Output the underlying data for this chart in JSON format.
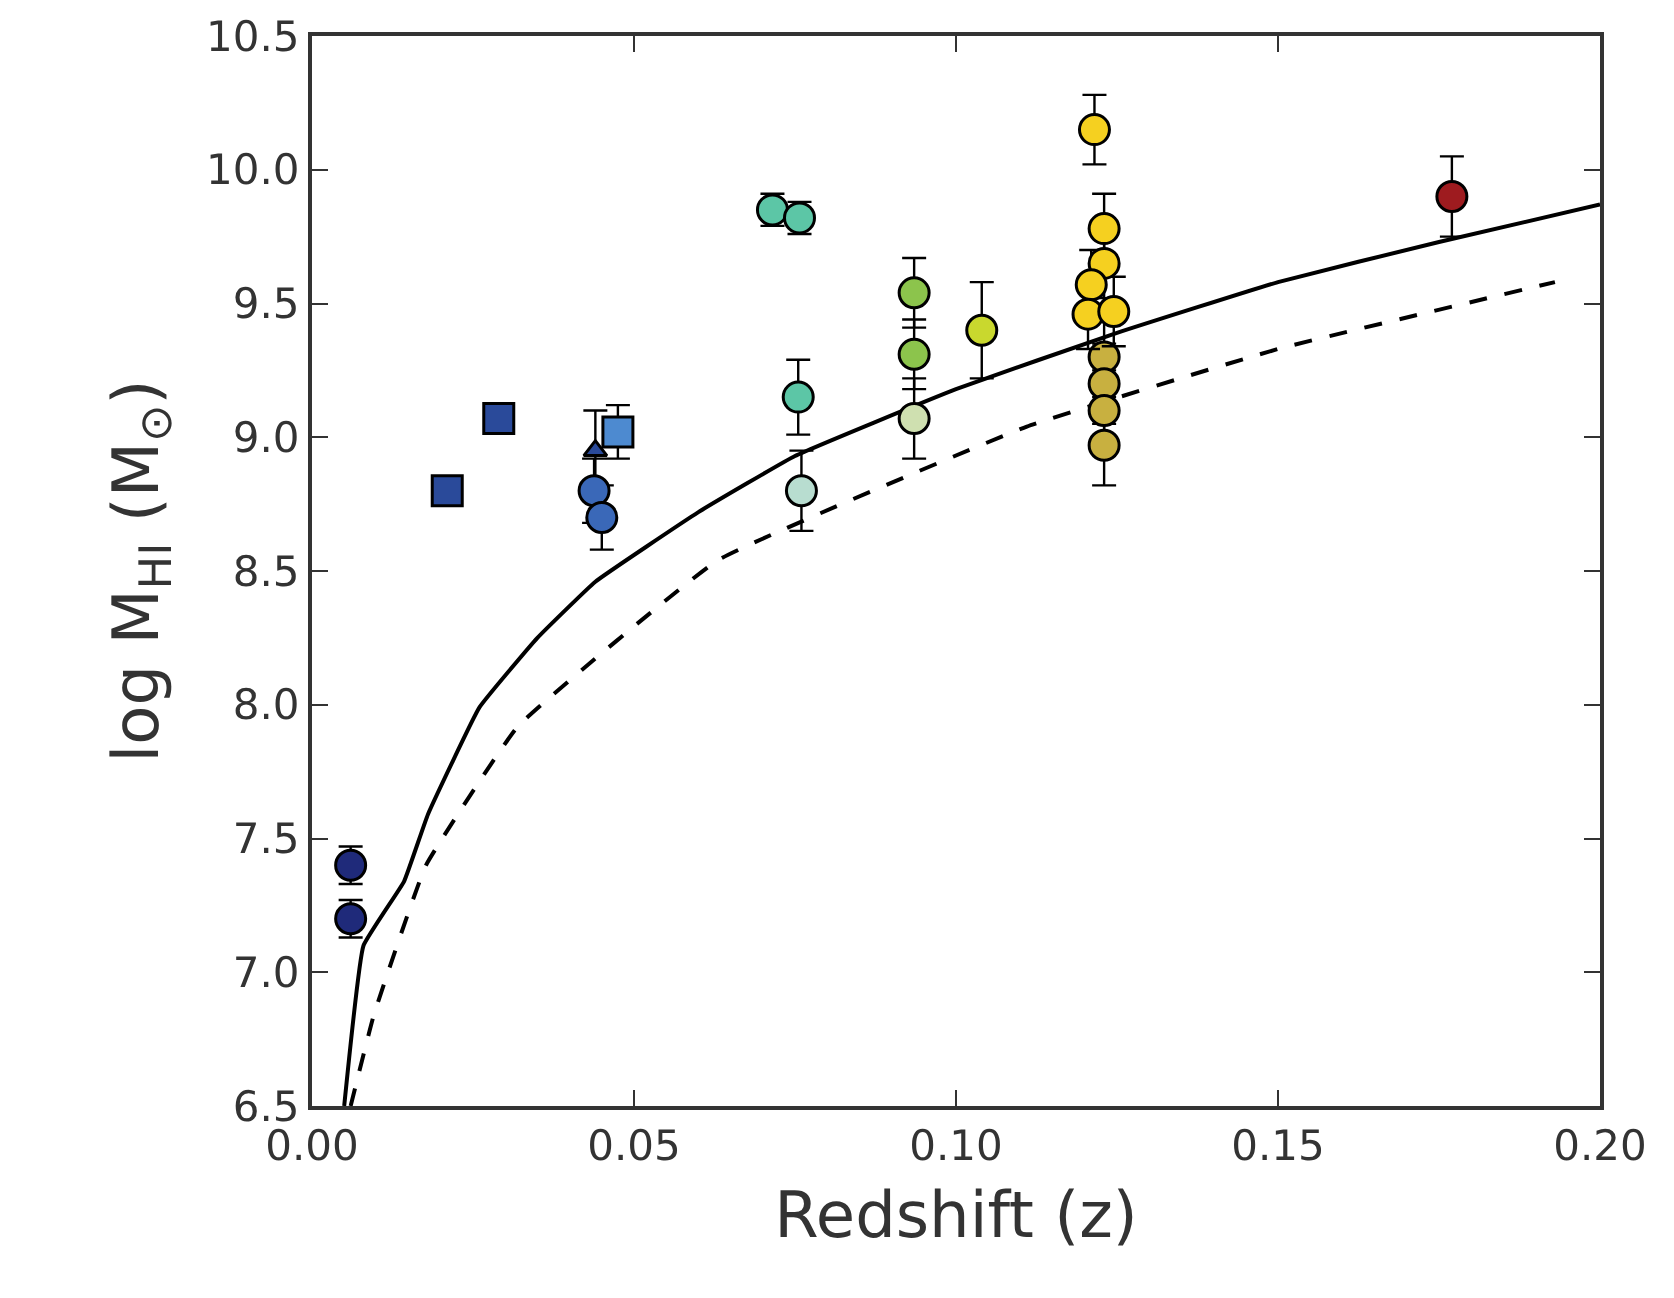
{
  "chart_data": {
    "type": "scatter",
    "xlabel": "Redshift (z)",
    "ylabel": "log M$_{HI}$ (M$_{⊙}$)",
    "xlim": [
      0,
      0.2
    ],
    "ylim": [
      6.5,
      10.5
    ],
    "xticks": [
      {
        "value": 0,
        "label": "0.00"
      },
      {
        "value": 0.05,
        "label": "0.05"
      },
      {
        "value": 0.1,
        "label": "0.10"
      },
      {
        "value": 0.15,
        "label": "0.15"
      },
      {
        "value": 0.2,
        "label": "0.20"
      }
    ],
    "yticks": [
      {
        "value": 6.5,
        "label": "6.5"
      },
      {
        "value": 7,
        "label": "7.0"
      },
      {
        "value": 7.5,
        "label": "7.5"
      },
      {
        "value": 8,
        "label": "8.0"
      },
      {
        "value": 8.5,
        "label": "8.5"
      },
      {
        "value": 9,
        "label": "9.0"
      },
      {
        "value": 9.5,
        "label": "9.5"
      },
      {
        "value": 10,
        "label": "10.0"
      },
      {
        "value": 10.5,
        "label": "10.5"
      }
    ],
    "grid": false,
    "marker": "circle",
    "series": [
      {
        "type": "line",
        "color": "#000000",
        "marker": "none",
        "line_style": "solid",
        "x": [
          0.005,
          0.008,
          0.0143,
          0.018,
          0.026,
          0.035,
          0.044,
          0.06,
          0.075,
          0.1,
          0.125,
          0.15,
          0.175,
          0.2
        ],
        "values": [
          6.5,
          7.1,
          7.34,
          7.59,
          7.99,
          8.25,
          8.46,
          8.72,
          8.93,
          9.18,
          9.39,
          9.58,
          9.73,
          9.87
        ]
      },
      {
        "type": "line",
        "color": "#000000",
        "marker": "none",
        "line_style": "dashed",
        "x": [
          0.006,
          0.0096,
          0.0177,
          0.032,
          0.063,
          0.111,
          0.15,
          0.193
        ],
        "values": [
          6.5,
          6.84,
          7.4,
          7.92,
          8.54,
          9.04,
          9.33,
          9.58
        ]
      },
      {
        "color": "#1f2a7a",
        "x": [
          0.006,
          0.006
        ],
        "values": [
          7.4,
          7.2
        ],
        "errors": [
          0.07,
          0.07
        ]
      },
      {
        "color": "#2a4a9a",
        "marker": "square",
        "x": [
          0.021,
          0.029
        ],
        "values": [
          8.8,
          9.07
        ]
      },
      {
        "color": "#2a4a9a",
        "marker": "triangle",
        "x": [
          0.044
        ],
        "values": [
          8.95
        ],
        "errors": [
          0.15
        ]
      },
      {
        "color": "#4d8ad0",
        "marker": "square",
        "x": [
          0.0475
        ],
        "values": [
          9.02
        ],
        "errors": [
          0.1
        ]
      },
      {
        "color": "#3a68b8",
        "x": [
          0.0438,
          0.045
        ],
        "values": [
          8.8,
          8.7
        ],
        "errors": [
          0.12,
          0.12
        ]
      },
      {
        "color": "#5cc6a6",
        "x": [
          0.0715,
          0.0757,
          0.0755
        ],
        "values": [
          9.85,
          9.82,
          9.15
        ],
        "errors": [
          0.06,
          0.06,
          0.14
        ]
      },
      {
        "color": "#b8ddd0",
        "x": [
          0.076
        ],
        "values": [
          8.8
        ],
        "errors": [
          0.15
        ]
      },
      {
        "color": "#8cc44c",
        "x": [
          0.0935,
          0.0935
        ],
        "values": [
          9.54,
          9.31
        ],
        "errors": [
          0.13,
          0.13
        ]
      },
      {
        "color": "#cfe0b0",
        "x": [
          0.0935
        ],
        "values": [
          9.07
        ],
        "errors": [
          0.15
        ]
      },
      {
        "color": "#c9d82e",
        "x": [
          0.104
        ],
        "values": [
          9.4
        ],
        "errors": [
          0.18
        ]
      },
      {
        "color": "#c8b040",
        "x": [
          0.123,
          0.123,
          0.123,
          0.123
        ],
        "values": [
          9.3,
          9.2,
          9.1,
          8.97
        ],
        "errors": [
          0.15,
          0.15,
          0.15,
          0.15
        ]
      },
      {
        "color": "#f5d020",
        "x": [
          0.1215,
          0.123,
          0.123,
          0.121,
          0.1205,
          0.1245
        ],
        "values": [
          10.15,
          9.78,
          9.65,
          9.57,
          9.46,
          9.47
        ],
        "errors": [
          0.13,
          0.13,
          0.13,
          0.13,
          0.13,
          0.13
        ]
      },
      {
        "color": "#9e1b1f",
        "x": [
          0.177
        ],
        "values": [
          9.9
        ],
        "errors": [
          0.15
        ]
      }
    ]
  }
}
